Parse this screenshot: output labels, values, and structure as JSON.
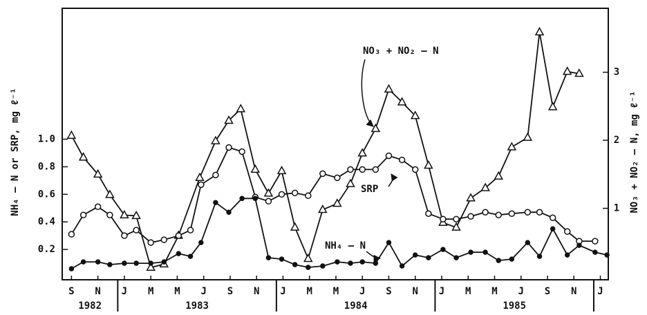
{
  "chart_data": {
    "type": "line",
    "y_label": "NH₄ – N or SRP, mg ℓ⁻¹",
    "y2_label": "NO₃ + NO₂ – N, mg ℓ⁻¹",
    "annotations": [
      "NO₃ + NO₂ – N",
      "SRP",
      "NH₄ – N"
    ],
    "xlim": [
      -0.7,
      40.6
    ],
    "xticks": [
      {
        "value": 0,
        "label": "S"
      },
      {
        "value": 2,
        "label": "N"
      },
      {
        "value": 4,
        "label": "J"
      },
      {
        "value": 6,
        "label": "M"
      },
      {
        "value": 8,
        "label": "M"
      },
      {
        "value": 10,
        "label": "J"
      },
      {
        "value": 12,
        "label": "S"
      },
      {
        "value": 14,
        "label": "N"
      },
      {
        "value": 16,
        "label": "J"
      },
      {
        "value": 18,
        "label": "M"
      },
      {
        "value": 20,
        "label": "M"
      },
      {
        "value": 22,
        "label": "J"
      },
      {
        "value": 24,
        "label": "S"
      },
      {
        "value": 26,
        "label": "N"
      },
      {
        "value": 28,
        "label": "J"
      },
      {
        "value": 30,
        "label": "M"
      },
      {
        "value": 32,
        "label": "M"
      },
      {
        "value": 34,
        "label": "J"
      },
      {
        "value": 36,
        "label": "S"
      },
      {
        "value": 38,
        "label": "N"
      },
      {
        "value": 40,
        "label": "J"
      }
    ],
    "year_ticks": [
      3.5,
      15.5,
      27.5,
      39.5
    ],
    "years": [
      "1982",
      "1983",
      "1984",
      "1985"
    ],
    "ylim": [
      -0.02,
      1.95
    ],
    "yticks": [
      0.2,
      0.4,
      0.6,
      0.8,
      {
        "value": 1,
        "label": "1.0"
      }
    ],
    "y2lim": [
      -0.05,
      3.94
    ],
    "y2ticks": [
      1,
      2,
      3
    ],
    "series": [
      {
        "name": "NO₃ + NO₂ – N",
        "axis": "y2",
        "marker": "triangle",
        "color": "#111",
        "x": [
          0,
          0.9,
          2,
          2.9,
          4,
          4.9,
          6,
          7,
          8.1,
          9.7,
          10.9,
          11.9,
          12.8,
          13.9,
          14.9,
          15.9,
          16.9,
          17.9,
          19,
          20.1,
          21.1,
          22,
          23,
          24,
          25,
          26,
          27,
          28.1,
          29.1,
          30.2,
          31.3,
          32.3,
          33.3,
          34.5,
          35.4,
          36.4,
          37.5,
          38.4
        ],
        "values": [
          2.07,
          1.75,
          1.5,
          1.2,
          0.9,
          0.89,
          0.13,
          0.18,
          0.6,
          1.45,
          1.99,
          2.29,
          2.46,
          1.57,
          1.22,
          1.55,
          0.72,
          0.26,
          0.98,
          1.07,
          1.36,
          1.81,
          2.17,
          2.75,
          2.56,
          2.36,
          1.63,
          0.79,
          0.72,
          1.15,
          1.3,
          1.47,
          1.9,
          2.04,
          3.59,
          2.49,
          3.01,
          2.98
        ]
      },
      {
        "name": "SRP",
        "marker": "open-circle",
        "color": "#111",
        "x": [
          0,
          0.9,
          2,
          2.9,
          4,
          4.9,
          6,
          7,
          8.1,
          9,
          9.8,
          10.9,
          11.9,
          12.9,
          13.9,
          14.9,
          15.9,
          16.9,
          17.9,
          19,
          20.1,
          21.1,
          22,
          23,
          24,
          25,
          26,
          27,
          28.1,
          29.1,
          30.2,
          31.3,
          32.3,
          33.3,
          34.5,
          35.4,
          36.4,
          37.5,
          38.4,
          39.6
        ],
        "values": [
          0.31,
          0.45,
          0.51,
          0.45,
          0.3,
          0.34,
          0.25,
          0.27,
          0.3,
          0.34,
          0.67,
          0.74,
          0.94,
          0.91,
          0.58,
          0.55,
          0.6,
          0.61,
          0.59,
          0.75,
          0.72,
          0.78,
          0.78,
          0.78,
          0.88,
          0.85,
          0.78,
          0.46,
          0.42,
          0.42,
          0.44,
          0.47,
          0.45,
          0.46,
          0.47,
          0.47,
          0.43,
          0.33,
          0.26,
          0.26
        ]
      },
      {
        "name": "NH₄ – N",
        "marker": "filled-circle",
        "color": "#111",
        "x": [
          0,
          0.9,
          2,
          2.9,
          4,
          4.9,
          6,
          7,
          8.1,
          9,
          9.8,
          10.9,
          11.9,
          12.9,
          13.9,
          14.9,
          15.9,
          16.9,
          17.9,
          19,
          20.1,
          21.1,
          22,
          23,
          24,
          25,
          26,
          27,
          28.1,
          29.1,
          30.2,
          31.3,
          32.3,
          33.3,
          34.5,
          35.4,
          36.4,
          37.5,
          38.4,
          39.6,
          40.5
        ],
        "values": [
          0.06,
          0.11,
          0.11,
          0.09,
          0.1,
          0.1,
          0.1,
          0.11,
          0.17,
          0.15,
          0.25,
          0.54,
          0.47,
          0.57,
          0.57,
          0.14,
          0.13,
          0.09,
          0.07,
          0.08,
          0.11,
          0.1,
          0.11,
          0.1,
          0.25,
          0.08,
          0.16,
          0.14,
          0.2,
          0.14,
          0.18,
          0.18,
          0.12,
          0.13,
          0.25,
          0.15,
          0.35,
          0.16,
          0.23,
          0.18,
          0.16
        ]
      }
    ]
  }
}
